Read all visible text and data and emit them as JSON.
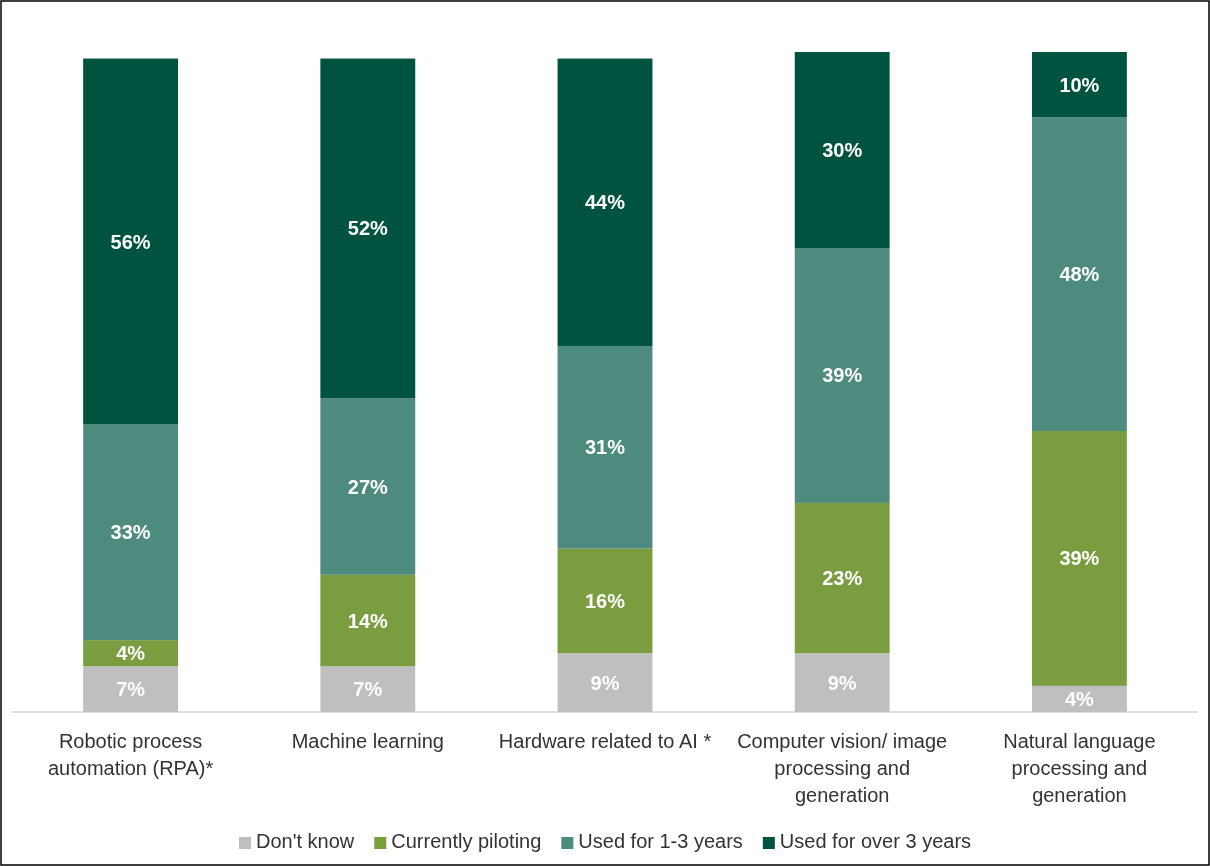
{
  "chart_data": {
    "type": "bar",
    "stacked": true,
    "legend": "bottom",
    "categories": [
      "Robotic process automation (RPA)*",
      "Machine learning",
      "Hardware related to AI *",
      "Computer vision/ image processing and generation",
      "Natural language processing and generation"
    ],
    "series": [
      {
        "name": "Don't know",
        "color": "#bfbfbf",
        "values": [
          7,
          7,
          9,
          9,
          4
        ],
        "value_labels": [
          "7%",
          "7%",
          "9%",
          "9%",
          "4%"
        ]
      },
      {
        "name": "Currently piloting",
        "color": "#7a9e3f",
        "values": [
          4,
          14,
          16,
          23,
          39
        ],
        "value_labels": [
          "4%",
          "14%",
          "16%",
          "23%",
          "39%"
        ]
      },
      {
        "name": "Used for 1-3 years",
        "color": "#4d8b7e",
        "values": [
          33,
          27,
          31,
          39,
          48
        ],
        "value_labels": [
          "33%",
          "27%",
          "31%",
          "39%",
          "48%"
        ]
      },
      {
        "name": "Used for over 3 years",
        "color": "#00543f",
        "values": [
          56,
          52,
          44,
          30,
          10
        ],
        "value_labels": [
          "56%",
          "52%",
          "44%",
          "30%",
          "10%"
        ]
      }
    ]
  }
}
